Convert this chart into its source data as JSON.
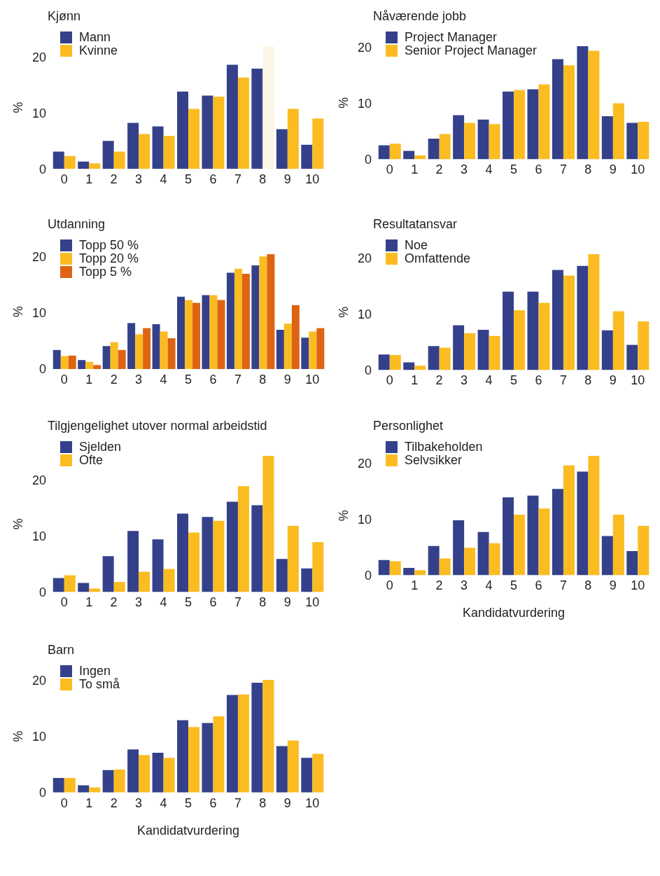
{
  "chart_data": [
    {
      "type": "bar",
      "title": "Kjønn",
      "ylabel": "%",
      "categories": [
        "0",
        "1",
        "2",
        "3",
        "4",
        "5",
        "6",
        "7",
        "8",
        "9",
        "10"
      ],
      "ylim": [
        0,
        21.9
      ],
      "yticks": [
        0,
        10,
        20
      ],
      "legend": "top left",
      "grid": false,
      "series": [
        {
          "name": "Mann",
          "color": "#34418a",
          "values": [
            3.1,
            1.3,
            5.0,
            8.2,
            7.6,
            13.8,
            13.1,
            18.6,
            17.9,
            7.1,
            4.3
          ]
        },
        {
          "name": "Kvinne",
          "color": "#fbbc21",
          "colors": [
            "#fbbc21",
            "#fbbc21",
            "#fbbc21",
            "#fbbc21",
            "#fbbc21",
            "#fbbc21",
            "#fbbc21",
            "#fbbc21",
            "#fdf6e6",
            "#fbbc21",
            "#fbbc21"
          ],
          "values": [
            2.3,
            1.0,
            3.1,
            6.2,
            5.9,
            10.7,
            12.9,
            16.3,
            21.9,
            10.7,
            9.0
          ]
        }
      ]
    },
    {
      "type": "bar",
      "title": "Nåværende jobb",
      "ylabel": "%",
      "categories": [
        "0",
        "1",
        "2",
        "3",
        "4",
        "5",
        "6",
        "7",
        "8",
        "9",
        "10"
      ],
      "ylim": [
        0,
        20.2
      ],
      "yticks": [
        0,
        10,
        20
      ],
      "legend": "top left",
      "grid": false,
      "series": [
        {
          "name": "Project Manager",
          "color": "#34418a",
          "values": [
            2.5,
            1.5,
            3.7,
            7.9,
            7.1,
            12.1,
            12.5,
            17.9,
            20.2,
            7.7,
            6.5
          ]
        },
        {
          "name": "Senior Project Manager",
          "color": "#fbbc21",
          "values": [
            2.8,
            0.7,
            4.5,
            6.5,
            6.3,
            12.4,
            13.4,
            16.8,
            19.4,
            10.0,
            6.7
          ]
        }
      ]
    },
    {
      "type": "bar",
      "title": "Utdanning",
      "ylabel": "%",
      "categories": [
        "0",
        "1",
        "2",
        "3",
        "4",
        "5",
        "6",
        "7",
        "8",
        "9",
        "10"
      ],
      "ylim": [
        0,
        20.5
      ],
      "yticks": [
        0,
        10,
        20
      ],
      "legend": "top left",
      "grid": false,
      "series": [
        {
          "name": "Topp 50 %",
          "color": "#34418a",
          "values": [
            3.4,
            1.6,
            4.1,
            8.2,
            8.0,
            12.9,
            13.2,
            17.2,
            18.5,
            7.0,
            5.6
          ]
        },
        {
          "name": "Topp 20 %",
          "color": "#fbbc21",
          "values": [
            2.3,
            1.3,
            4.8,
            6.2,
            6.7,
            12.3,
            13.2,
            17.9,
            20.1,
            8.1,
            6.7
          ]
        },
        {
          "name": "Topp 5 %",
          "color": "#de6414",
          "values": [
            2.4,
            0.7,
            3.4,
            7.3,
            5.5,
            11.8,
            12.3,
            17.0,
            20.5,
            11.4,
            7.3
          ]
        }
      ]
    },
    {
      "type": "bar",
      "title": "Resultatansvar",
      "ylabel": "%",
      "categories": [
        "0",
        "1",
        "2",
        "3",
        "4",
        "5",
        "6",
        "7",
        "8",
        "9",
        "10"
      ],
      "ylim": [
        0,
        20.7
      ],
      "yticks": [
        0,
        10,
        20
      ],
      "legend": "top left",
      "grid": false,
      "series": [
        {
          "name": "Noe",
          "color": "#34418a",
          "values": [
            2.8,
            1.4,
            4.3,
            8.0,
            7.2,
            14.0,
            14.0,
            17.9,
            18.6,
            7.1,
            4.5
          ]
        },
        {
          "name": "Omfattende",
          "color": "#fbbc21",
          "values": [
            2.7,
            0.8,
            4.0,
            6.6,
            6.1,
            10.7,
            12.0,
            16.9,
            20.7,
            10.5,
            8.7
          ]
        }
      ]
    },
    {
      "type": "bar",
      "title": "Tilgjengelighet utover normal arbeidstid",
      "ylabel": "%",
      "categories": [
        "0",
        "1",
        "2",
        "3",
        "4",
        "5",
        "6",
        "7",
        "8",
        "9",
        "10"
      ],
      "ylim": [
        0,
        24.3
      ],
      "yticks": [
        0,
        10,
        20
      ],
      "legend": "top left",
      "grid": false,
      "series": [
        {
          "name": "Sjelden",
          "color": "#34418a",
          "values": [
            2.5,
            1.6,
            6.4,
            10.9,
            9.4,
            14.0,
            13.4,
            16.1,
            15.5,
            5.9,
            4.2
          ]
        },
        {
          "name": "Ofte",
          "color": "#fbbc21",
          "values": [
            3.0,
            0.6,
            1.8,
            3.6,
            4.1,
            10.6,
            12.7,
            18.9,
            24.3,
            11.8,
            8.9
          ]
        }
      ]
    },
    {
      "type": "bar",
      "title": "Personlighet",
      "ylabel": "%",
      "xlabel": "Kandidatvurdering",
      "categories": [
        "0",
        "1",
        "2",
        "3",
        "4",
        "5",
        "6",
        "7",
        "8",
        "9",
        "10"
      ],
      "ylim": [
        0,
        21.3
      ],
      "yticks": [
        0,
        10,
        20
      ],
      "legend": "top left",
      "grid": false,
      "series": [
        {
          "name": "Tilbakeholden",
          "color": "#34418a",
          "values": [
            2.7,
            1.3,
            5.2,
            9.8,
            7.7,
            13.9,
            14.2,
            15.4,
            18.5,
            7.0,
            4.3
          ]
        },
        {
          "name": "Selvsikker",
          "color": "#fbbc21",
          "values": [
            2.5,
            0.9,
            3.0,
            4.9,
            5.7,
            10.8,
            11.9,
            19.6,
            21.3,
            10.8,
            8.8
          ]
        }
      ]
    },
    {
      "type": "bar",
      "title": "Barn",
      "ylabel": "%",
      "xlabel": "Kandidatvurdering",
      "categories": [
        "0",
        "1",
        "2",
        "3",
        "4",
        "5",
        "6",
        "7",
        "8",
        "9",
        "10"
      ],
      "ylim": [
        0,
        20.1
      ],
      "yticks": [
        0,
        10,
        20
      ],
      "legend": "top left",
      "grid": false,
      "series": [
        {
          "name": "Ingen",
          "color": "#34418a",
          "values": [
            2.6,
            1.3,
            4.0,
            7.7,
            7.1,
            12.9,
            12.4,
            17.4,
            19.6,
            8.3,
            6.2
          ]
        },
        {
          "name": "To små",
          "color": "#fbbc21",
          "values": [
            2.6,
            0.9,
            4.1,
            6.7,
            6.2,
            11.7,
            13.6,
            17.5,
            20.1,
            9.3,
            6.9
          ]
        }
      ]
    }
  ]
}
